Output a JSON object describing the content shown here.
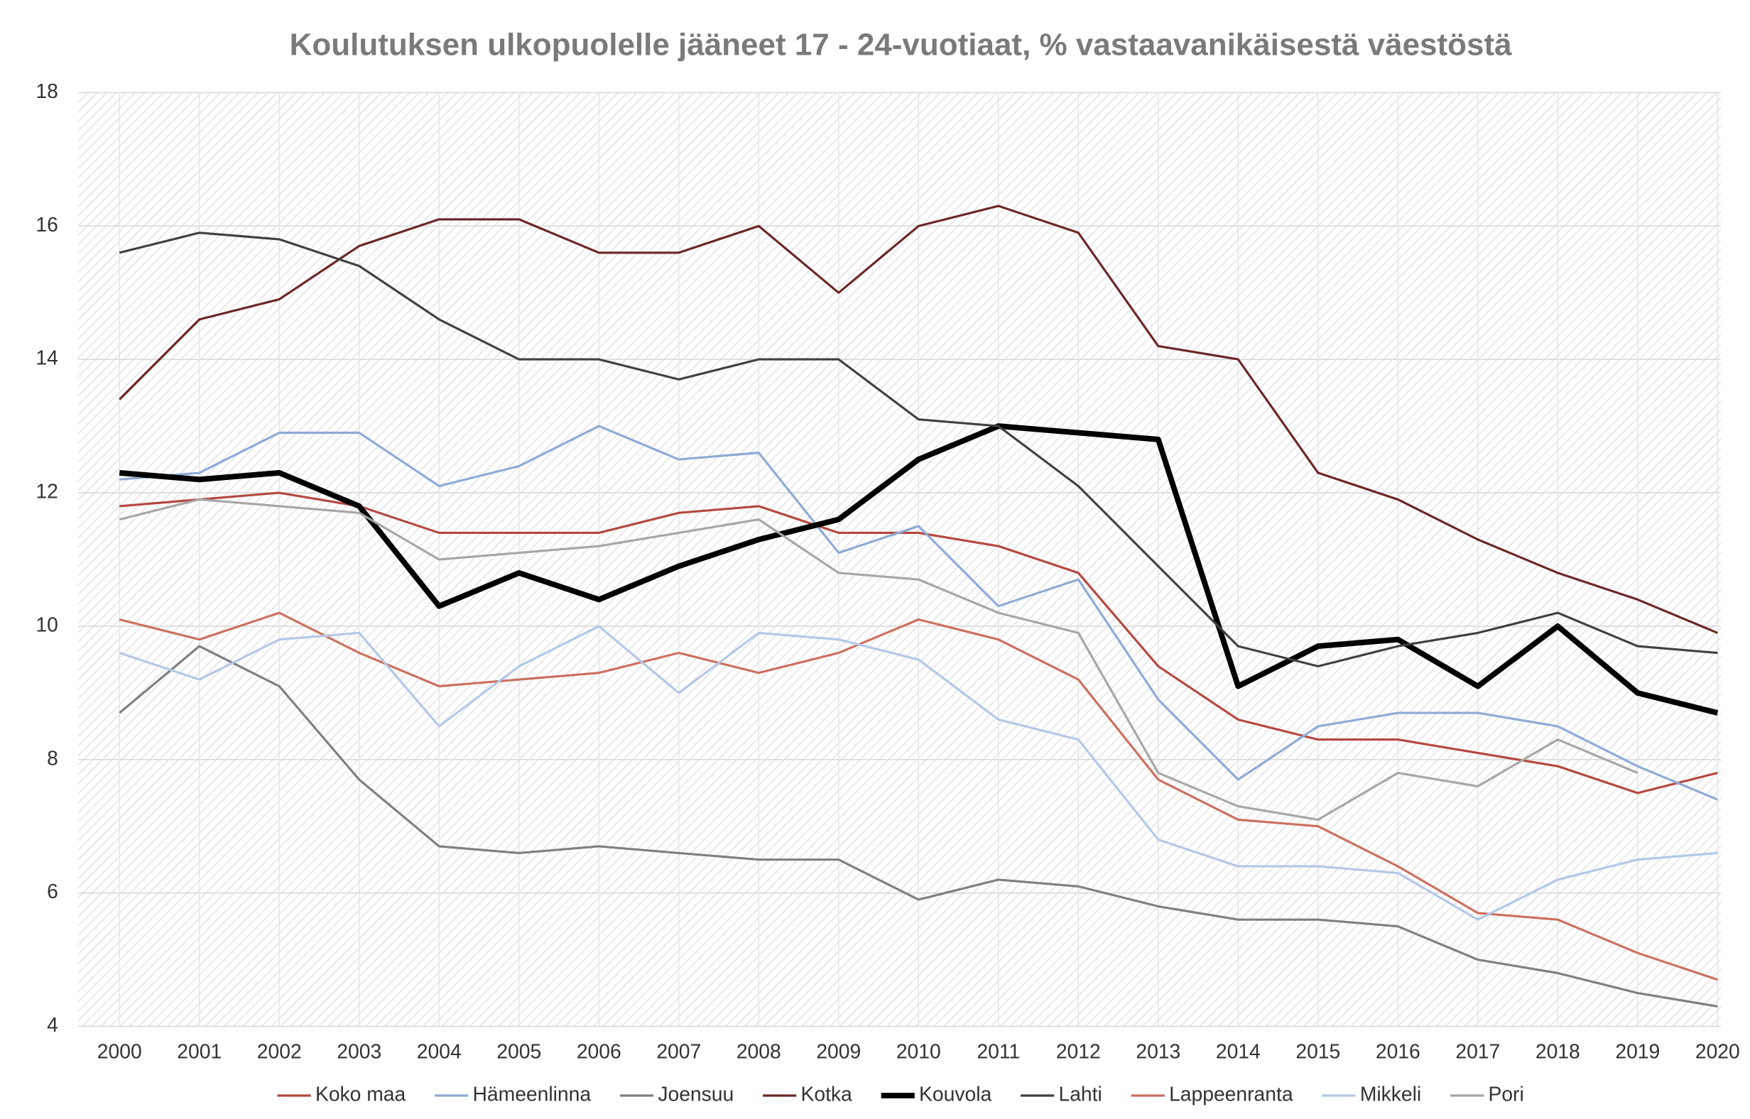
{
  "chart_data": {
    "type": "line",
    "title": "Koulutuksen ulkopuolelle jääneet 17 - 24-vuotiaat, % vastaavanikäisestä väestöstä",
    "categories": [
      "2000",
      "2001",
      "2002",
      "2003",
      "2004",
      "2005",
      "2006",
      "2007",
      "2008",
      "2009",
      "2010",
      "2011",
      "2012",
      "2013",
      "2014",
      "2015",
      "2016",
      "2017",
      "2018",
      "2019",
      "2020"
    ],
    "ylim": [
      4,
      18
    ],
    "yticks": [
      4,
      6,
      8,
      10,
      12,
      14,
      16,
      18
    ],
    "grid": true,
    "legend": "bottom",
    "series": [
      {
        "name": "Koko maa",
        "color": "#b5473f",
        "width": 2,
        "values": [
          11.8,
          11.9,
          12.0,
          11.8,
          11.4,
          11.4,
          11.4,
          11.7,
          11.8,
          11.4,
          11.4,
          11.2,
          10.8,
          9.4,
          8.6,
          8.3,
          8.3,
          8.1,
          7.9,
          7.5,
          7.8
        ]
      },
      {
        "name": "Hämeenlinna",
        "color": "#8eaad6",
        "width": 2,
        "values": [
          12.2,
          12.3,
          12.9,
          12.9,
          12.1,
          12.4,
          13.0,
          12.5,
          12.6,
          11.1,
          11.5,
          10.3,
          10.7,
          8.9,
          7.7,
          8.5,
          8.7,
          8.7,
          8.5,
          7.9,
          7.4
        ]
      },
      {
        "name": "Joensuu",
        "color": "#7f7f7f",
        "width": 2,
        "values": [
          8.7,
          9.7,
          9.1,
          7.7,
          6.7,
          6.6,
          6.7,
          6.6,
          6.5,
          6.5,
          5.9,
          6.2,
          6.1,
          5.8,
          5.6,
          5.6,
          5.5,
          5.0,
          4.8,
          4.5,
          4.3
        ]
      },
      {
        "name": "Kotka",
        "color": "#6b2626",
        "width": 2,
        "values": [
          13.4,
          14.6,
          14.9,
          15.7,
          16.1,
          16.1,
          15.6,
          15.6,
          16.0,
          15.0,
          16.0,
          16.3,
          15.9,
          14.2,
          14.0,
          12.3,
          11.9,
          11.3,
          10.8,
          10.4,
          9.9
        ]
      },
      {
        "name": "Kouvola",
        "color": "#000000",
        "width": 5,
        "values": [
          12.3,
          12.2,
          12.3,
          11.8,
          10.3,
          10.8,
          10.4,
          10.9,
          11.3,
          11.6,
          12.5,
          13.0,
          12.9,
          12.8,
          9.1,
          9.7,
          9.8,
          9.1,
          10.0,
          9.0,
          8.7
        ]
      },
      {
        "name": "Lahti",
        "color": "#404040",
        "width": 2,
        "values": [
          15.6,
          15.9,
          15.8,
          15.4,
          14.6,
          14.0,
          14.0,
          13.7,
          14.0,
          14.0,
          13.1,
          13.0,
          12.1,
          10.9,
          9.7,
          9.4,
          9.7,
          9.9,
          10.2,
          9.7,
          9.6
        ]
      },
      {
        "name": "Lappeenranta",
        "color": "#cc6f5e",
        "width": 2,
        "values": [
          10.1,
          9.8,
          10.2,
          9.6,
          9.1,
          9.2,
          9.3,
          9.6,
          9.3,
          9.6,
          10.1,
          9.8,
          9.2,
          7.7,
          7.1,
          7.0,
          6.4,
          5.7,
          5.6,
          5.1,
          4.7
        ]
      },
      {
        "name": "Mikkeli",
        "color": "#b4c7e7",
        "width": 2,
        "values": [
          9.6,
          9.2,
          9.8,
          9.9,
          8.5,
          9.4,
          10.0,
          9.0,
          9.9,
          9.8,
          9.5,
          8.6,
          8.3,
          6.8,
          6.4,
          6.4,
          6.3,
          5.6,
          6.2,
          6.5,
          6.6
        ]
      },
      {
        "name": "Pori",
        "color": "#a6a6a6",
        "width": 2,
        "values": [
          11.6,
          11.9,
          11.8,
          11.7,
          11.0,
          11.1,
          11.2,
          11.4,
          11.6,
          10.8,
          10.7,
          10.2,
          9.9,
          7.8,
          7.3,
          7.1,
          7.8,
          7.6,
          8.3,
          7.8,
          null
        ]
      }
    ]
  }
}
